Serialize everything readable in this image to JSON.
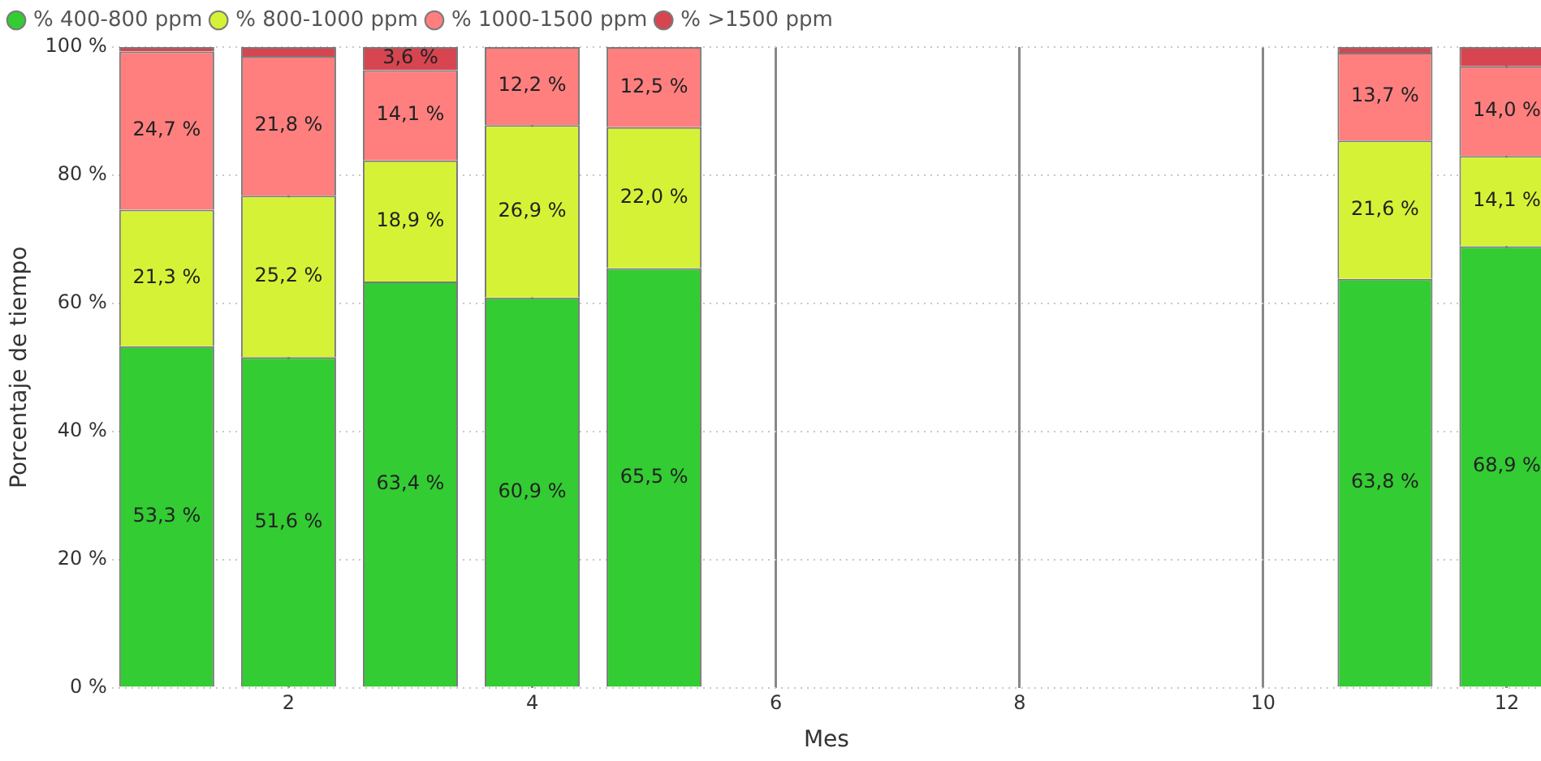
{
  "chart_data": {
    "type": "bar",
    "stacked": true,
    "xlabel": "Mes",
    "ylabel": "Porcentaje de tiempo",
    "x": [
      1,
      2,
      3,
      4,
      5,
      11,
      12
    ],
    "xlim": [
      0.55,
      12.28
    ],
    "xticks": [
      2,
      4,
      6,
      8,
      10,
      12
    ],
    "ylim": [
      0,
      100
    ],
    "yticks": [
      {
        "value": 0,
        "label": "0 %"
      },
      {
        "value": 20,
        "label": "20 %"
      },
      {
        "value": 40,
        "label": "40 %"
      },
      {
        "value": 60,
        "label": "60 %"
      },
      {
        "value": 80,
        "label": "80 %"
      },
      {
        "value": 100,
        "label": "100 %"
      }
    ],
    "grid": true,
    "legend": "top left",
    "series": [
      {
        "name": "% 400-800 ppm",
        "color": "#33cc33",
        "values": [
          53.3,
          51.6,
          63.4,
          60.9,
          65.5,
          63.8,
          68.9
        ],
        "value_labels": [
          "53,3 %",
          "51,6 %",
          "63,4 %",
          "60,9 %",
          "65,5 %",
          "63,8 %",
          "68,9 %"
        ]
      },
      {
        "name": "% 800-1000 ppm",
        "color": "#d6f236",
        "values": [
          21.3,
          25.2,
          18.9,
          26.9,
          22.0,
          21.6,
          14.1
        ],
        "value_labels": [
          "21,3 %",
          "25,2 %",
          "18,9 %",
          "26,9 %",
          "22,0 %",
          "21,6 %",
          "14,1 %"
        ]
      },
      {
        "name": "% 1000-1500 ppm",
        "color": "#ff7f7f",
        "values": [
          24.7,
          21.8,
          14.1,
          12.2,
          12.5,
          13.7,
          14.0
        ],
        "value_labels": [
          "24,7 %",
          "21,8 %",
          "14,1 %",
          "12,2 %",
          "12,5 %",
          "13,7 %",
          "14,0 %"
        ]
      },
      {
        "name": "% >1500 ppm",
        "color": "#d64550",
        "values": [
          0.7,
          1.4,
          3.6,
          0,
          0,
          0.9,
          3.0
        ],
        "value_labels": [
          null,
          null,
          "3,6 %",
          null,
          null,
          null,
          null
        ]
      }
    ]
  }
}
